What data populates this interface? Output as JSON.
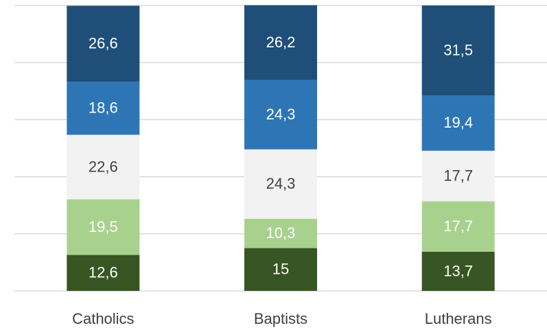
{
  "chart_data": {
    "type": "stacked_bar",
    "categories": [
      "Catholics",
      "Baptists",
      "Lutherans"
    ],
    "series": [
      {
        "color": "#375623",
        "label_color": "#ffffff",
        "values": [
          12.6,
          15,
          13.7
        ],
        "value_labels": [
          "12,6",
          "15",
          "13,7"
        ]
      },
      {
        "color": "#a9d18e",
        "label_color": "#ffffff",
        "values": [
          19.5,
          10.3,
          17.7
        ],
        "value_labels": [
          "19,5",
          "10,3",
          "17,7"
        ]
      },
      {
        "color": "#f2f2f2",
        "label_color": "#404040",
        "values": [
          22.6,
          24.3,
          17.7
        ],
        "value_labels": [
          "22,6",
          "24,3",
          "17,7"
        ]
      },
      {
        "color": "#2e75b6",
        "label_color": "#ffffff",
        "values": [
          18.6,
          24.3,
          19.4
        ],
        "value_labels": [
          "18,6",
          "24,3",
          "19,4"
        ]
      },
      {
        "color": "#1f4e79",
        "label_color": "#ffffff",
        "values": [
          26.6,
          26.2,
          31.5
        ],
        "value_labels": [
          "26,6",
          "26,2",
          "31,5"
        ]
      }
    ],
    "ylim": [
      0,
      100
    ],
    "yticks": [
      0,
      20,
      40,
      60,
      80,
      100
    ],
    "grid": true
  }
}
